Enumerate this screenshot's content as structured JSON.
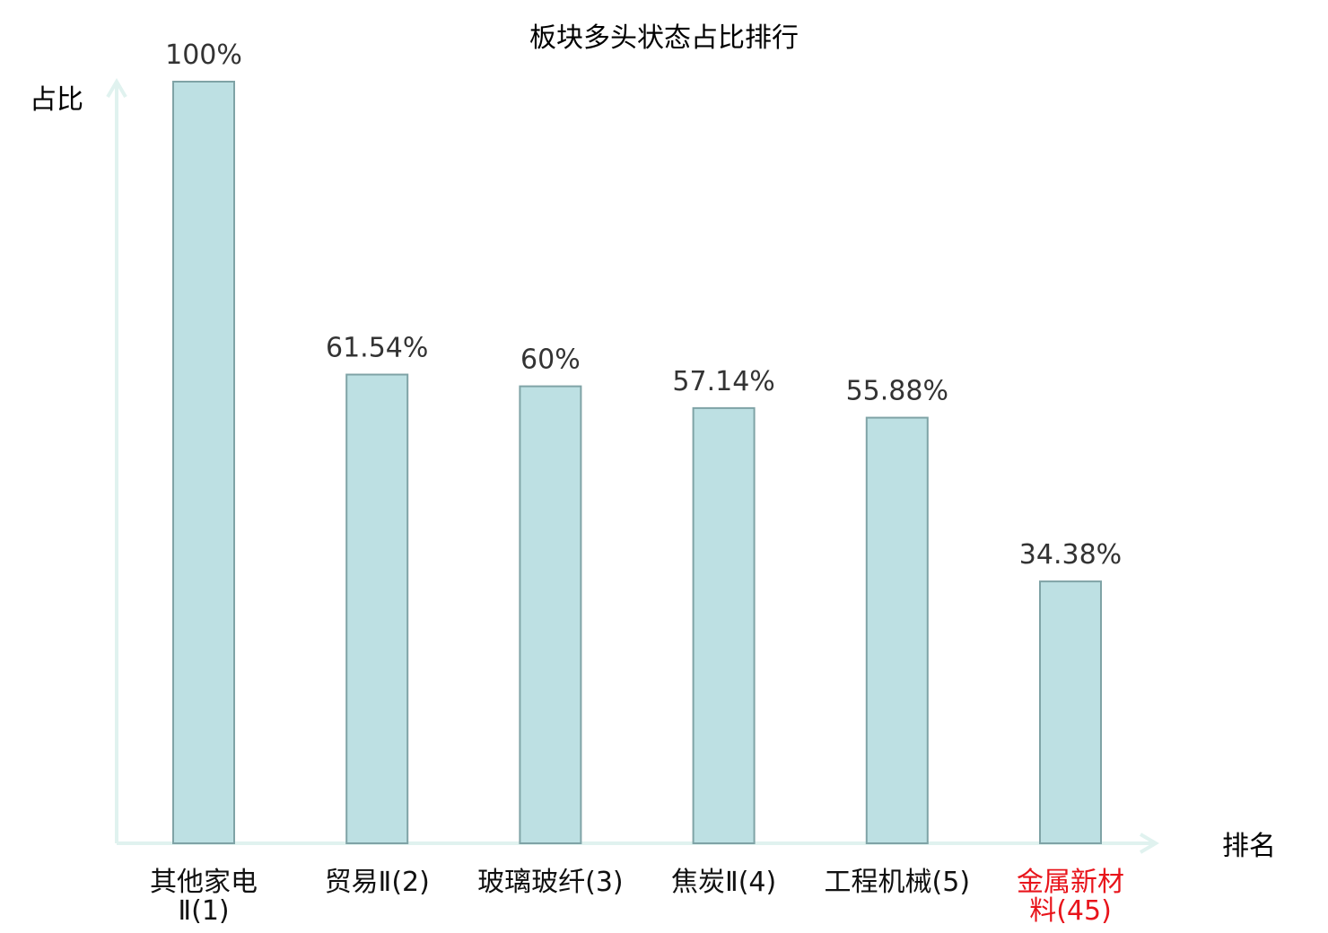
{
  "chart_data": {
    "type": "bar",
    "title": "板块多头状态占比排行",
    "xlabel": "排名",
    "ylabel": "占比",
    "categories": [
      [
        "其他家电",
        "Ⅱ(1)"
      ],
      [
        "贸易Ⅱ(2)"
      ],
      [
        "玻璃玻纤(3)"
      ],
      [
        "焦炭Ⅱ(4)"
      ],
      [
        "工程机械(5)"
      ],
      [
        "金属新材",
        "料(45)"
      ]
    ],
    "values": [
      100,
      61.54,
      60,
      57.14,
      55.88,
      34.38
    ],
    "value_labels": [
      "100%",
      "61.54%",
      "60%",
      "57.14%",
      "55.88%",
      "34.38%"
    ],
    "highlight_index": 5,
    "ylim": [
      0,
      100
    ],
    "grid": false,
    "colors": {
      "bar_fill": "#bde0e3",
      "bar_stroke": "#7fa3a6",
      "axis": "#e0f2ef",
      "highlight_text": "#e8141b",
      "normal_text": "#111111"
    }
  }
}
